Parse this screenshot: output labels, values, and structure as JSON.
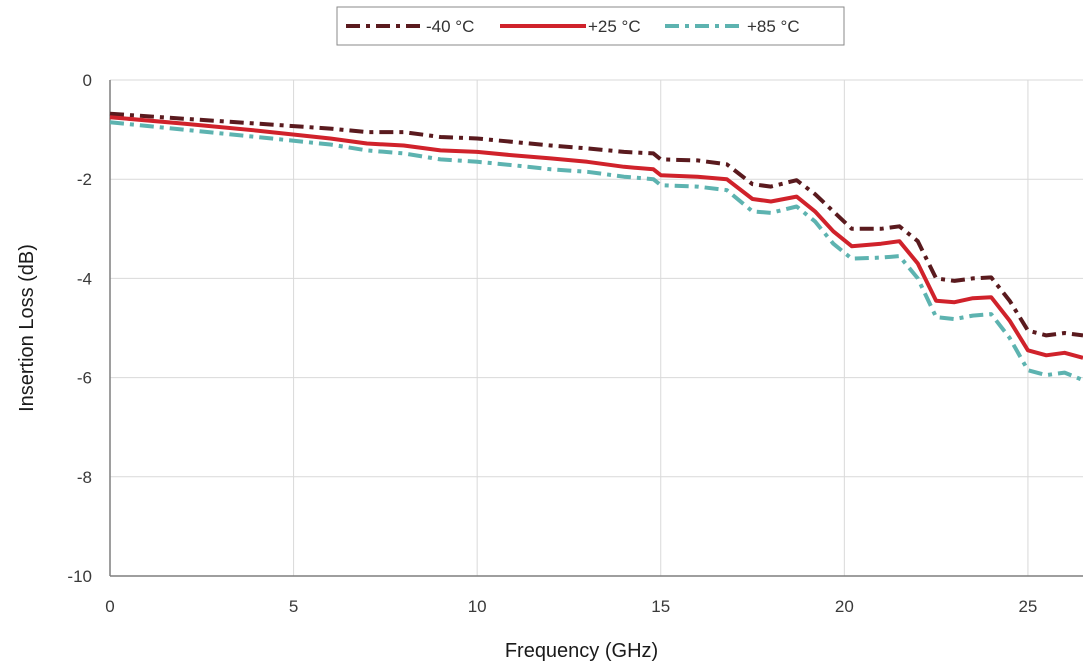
{
  "chart_data": {
    "type": "line",
    "title": "",
    "xlabel": "Frequency (GHz)",
    "ylabel": "Insertion Loss (dB)",
    "xlim": [
      0,
      26.5
    ],
    "ylim": [
      -10,
      0
    ],
    "x_ticks": [
      0,
      5,
      10,
      15,
      20,
      25
    ],
    "y_ticks": [
      0,
      -2,
      -4,
      -6,
      -8,
      -10
    ],
    "x_tick_labels": [
      "0",
      "5",
      "10",
      "15",
      "20",
      "25"
    ],
    "y_tick_labels": [
      "0",
      "-2",
      "-4",
      "-6",
      "-8",
      "-10"
    ],
    "grid": true,
    "legend_position": "top-center",
    "series": [
      {
        "name": "-40 °C",
        "color": "#5a1a1e",
        "style": "dash-dot",
        "x": [
          0,
          2,
          4,
          6,
          7,
          8,
          9,
          10,
          11,
          12,
          13,
          14,
          14.8,
          15,
          16,
          16.8,
          17.5,
          18,
          18.7,
          19.2,
          19.7,
          20.2,
          21,
          21.5,
          22,
          22.5,
          23,
          23.5,
          24,
          24.5,
          25,
          25.5,
          26,
          26.5
        ],
        "y": [
          -0.68,
          -0.78,
          -0.88,
          -0.98,
          -1.05,
          -1.05,
          -1.15,
          -1.18,
          -1.25,
          -1.32,
          -1.38,
          -1.45,
          -1.48,
          -1.6,
          -1.62,
          -1.7,
          -2.1,
          -2.15,
          -2.02,
          -2.3,
          -2.65,
          -3.0,
          -3.0,
          -2.95,
          -3.25,
          -4.0,
          -4.05,
          -4.0,
          -3.98,
          -4.45,
          -5.05,
          -5.15,
          -5.1,
          -5.15
        ]
      },
      {
        "name": "+25 °C",
        "color": "#d0222b",
        "style": "solid",
        "x": [
          0,
          2,
          4,
          6,
          7,
          8,
          9,
          10,
          11,
          12,
          13,
          14,
          14.8,
          15,
          16,
          16.8,
          17.5,
          18,
          18.7,
          19.2,
          19.7,
          20.2,
          21,
          21.5,
          22,
          22.5,
          23,
          23.5,
          24,
          24.5,
          25,
          25.5,
          26,
          26.5
        ],
        "y": [
          -0.75,
          -0.88,
          -1.02,
          -1.18,
          -1.28,
          -1.32,
          -1.42,
          -1.45,
          -1.52,
          -1.58,
          -1.65,
          -1.75,
          -1.8,
          -1.92,
          -1.95,
          -2.0,
          -2.4,
          -2.45,
          -2.35,
          -2.65,
          -3.05,
          -3.35,
          -3.3,
          -3.25,
          -3.7,
          -4.45,
          -4.48,
          -4.4,
          -4.38,
          -4.85,
          -5.45,
          -5.55,
          -5.5,
          -5.6
        ]
      },
      {
        "name": "+85 °C",
        "color": "#5db3b0",
        "style": "dash-dot",
        "x": [
          0,
          2,
          4,
          6,
          7,
          8,
          9,
          10,
          11,
          12,
          13,
          14,
          14.8,
          15,
          16,
          16.8,
          17.5,
          18,
          18.7,
          19.2,
          19.7,
          20.2,
          21,
          21.5,
          22,
          22.5,
          23,
          23.5,
          24,
          24.5,
          25,
          25.5,
          26,
          26.5
        ],
        "y": [
          -0.85,
          -1.0,
          -1.15,
          -1.3,
          -1.42,
          -1.48,
          -1.6,
          -1.65,
          -1.72,
          -1.8,
          -1.85,
          -1.95,
          -2.0,
          -2.12,
          -2.15,
          -2.22,
          -2.65,
          -2.68,
          -2.55,
          -2.85,
          -3.3,
          -3.6,
          -3.58,
          -3.55,
          -4.0,
          -4.78,
          -4.82,
          -4.75,
          -4.72,
          -5.2,
          -5.85,
          -5.95,
          -5.9,
          -6.05
        ]
      }
    ]
  }
}
